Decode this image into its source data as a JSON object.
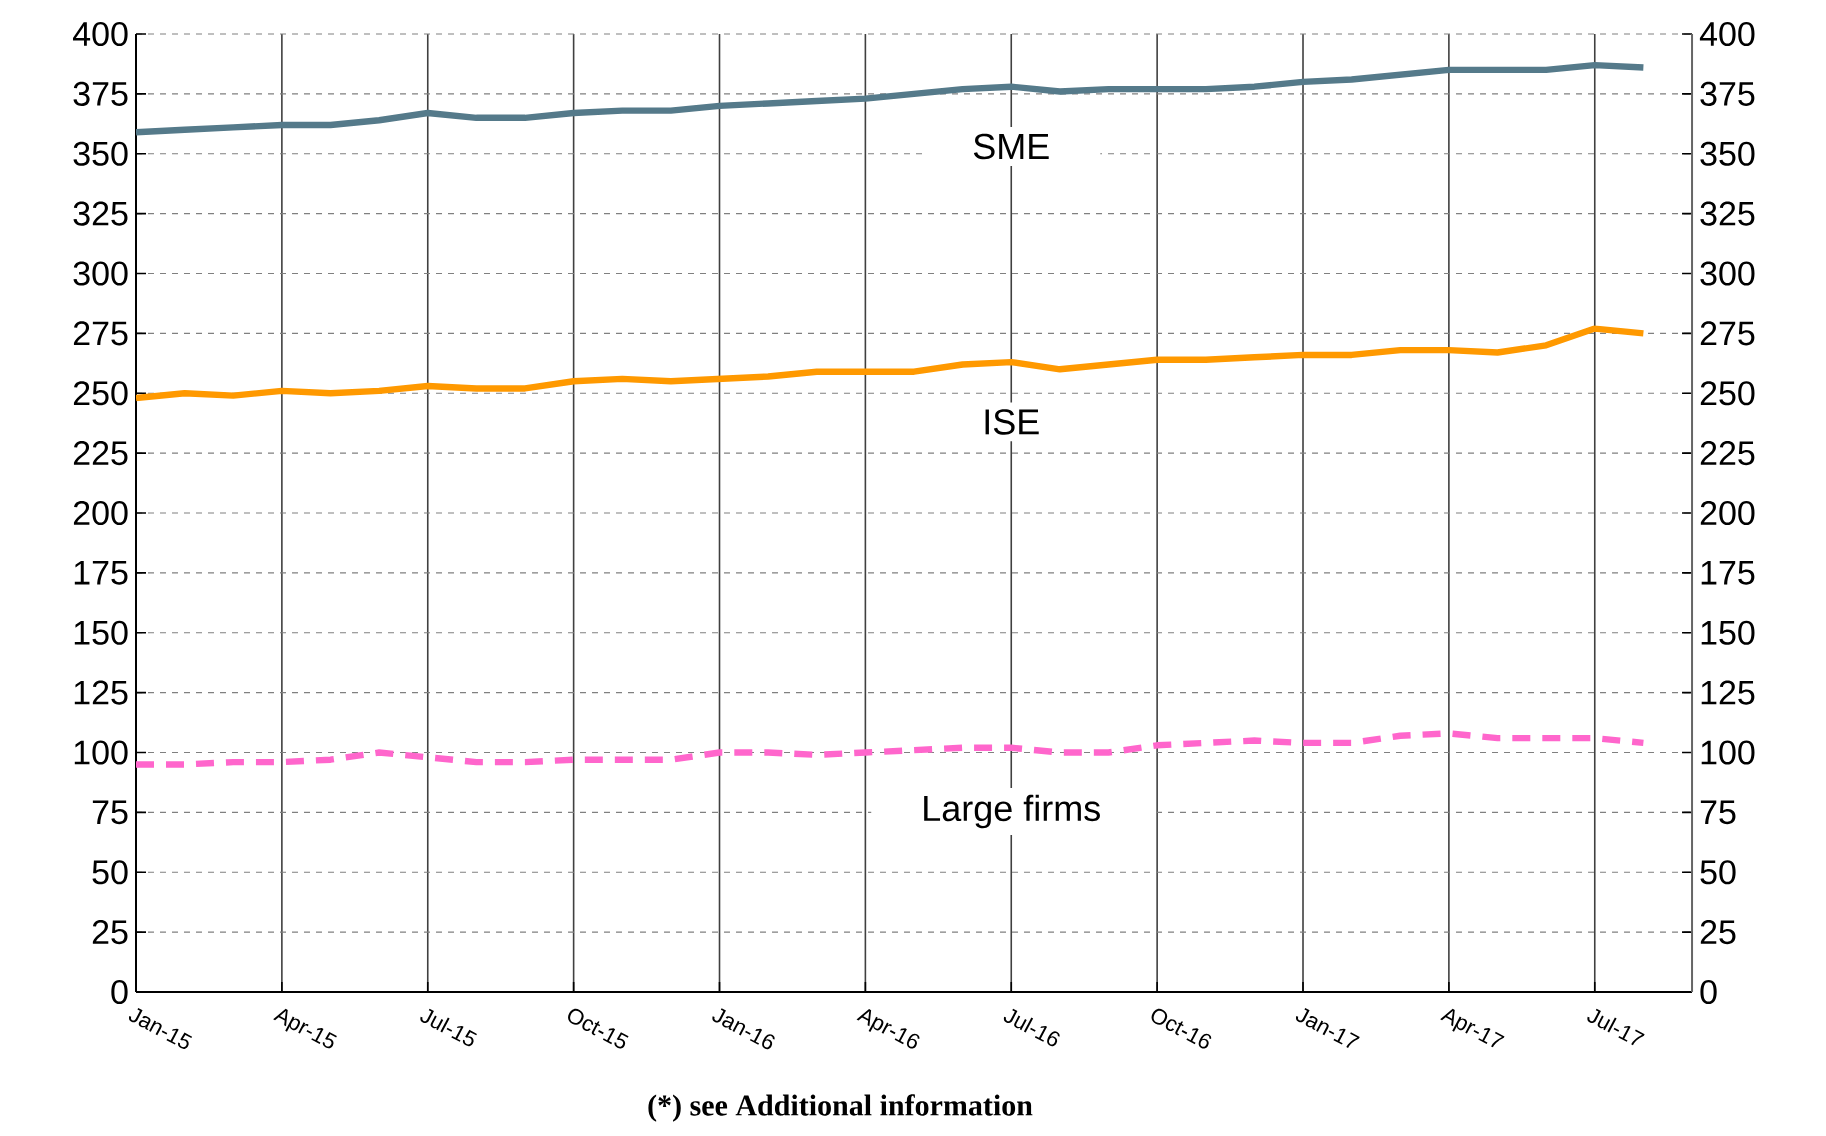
{
  "chart_data": {
    "type": "line",
    "annotations": [
      "(*) see Additional information"
    ],
    "x": [
      "2015-01",
      "2015-02",
      "2015-03",
      "2015-04",
      "2015-05",
      "2015-06",
      "2015-07",
      "2015-08",
      "2015-09",
      "2015-10",
      "2015-11",
      "2015-12",
      "2016-01",
      "2016-02",
      "2016-03",
      "2016-04",
      "2016-05",
      "2016-06",
      "2016-07",
      "2016-08",
      "2016-09",
      "2016-10",
      "2016-11",
      "2016-12",
      "2017-01",
      "2017-02",
      "2017-03",
      "2017-04",
      "2017-05",
      "2017-06",
      "2017-07",
      "2017-08"
    ],
    "series": [
      {
        "name": "SME",
        "color": "#557a8a",
        "line_style": "solid",
        "values": [
          359,
          360,
          361,
          362,
          362,
          364,
          367,
          365,
          365,
          367,
          368,
          368,
          370,
          371,
          372,
          373,
          375,
          377,
          378,
          376,
          377,
          377,
          377,
          378,
          380,
          381,
          383,
          385,
          385,
          385,
          387,
          386
        ]
      },
      {
        "name": "ISE",
        "color": "#ff9900",
        "line_style": "solid",
        "values": [
          248,
          250,
          249,
          251,
          250,
          251,
          253,
          252,
          252,
          255,
          256,
          255,
          256,
          257,
          259,
          259,
          259,
          262,
          263,
          260,
          262,
          264,
          264,
          265,
          266,
          266,
          268,
          268,
          267,
          270,
          277,
          275
        ]
      },
      {
        "name": "Large firms",
        "color": "#ff66cc",
        "line_style": "dashed",
        "values": [
          95,
          95,
          96,
          96,
          97,
          100,
          98,
          96,
          96,
          97,
          97,
          97,
          100,
          100,
          99,
          100,
          101,
          102,
          102,
          100,
          100,
          103,
          104,
          105,
          104,
          104,
          107,
          108,
          106,
          106,
          106,
          104
        ]
      }
    ],
    "xlim": [
      "2015-01",
      "2017-09"
    ],
    "xticks": [
      {
        "value": "2015-01",
        "label": "Jan-15"
      },
      {
        "value": "2015-04",
        "label": "Apr-15"
      },
      {
        "value": "2015-07",
        "label": "Jul-15"
      },
      {
        "value": "2015-10",
        "label": "Oct-15"
      },
      {
        "value": "2016-01",
        "label": "Jan-16"
      },
      {
        "value": "2016-04",
        "label": "Apr-16"
      },
      {
        "value": "2016-07",
        "label": "Jul-16"
      },
      {
        "value": "2016-10",
        "label": "Oct-16"
      },
      {
        "value": "2017-01",
        "label": "Jan-17"
      },
      {
        "value": "2017-04",
        "label": "Apr-17"
      },
      {
        "value": "2017-07",
        "label": "Jul-17"
      }
    ],
    "ylim": [
      0,
      400
    ],
    "yticks": [
      0,
      25,
      50,
      75,
      100,
      125,
      150,
      175,
      200,
      225,
      250,
      275,
      300,
      325,
      350,
      375,
      400
    ],
    "y2lim": [
      0,
      400
    ],
    "y2ticks": [
      0,
      25,
      50,
      75,
      100,
      125,
      150,
      175,
      200,
      225,
      250,
      275,
      300,
      325,
      350,
      375,
      400
    ],
    "grid": true
  }
}
